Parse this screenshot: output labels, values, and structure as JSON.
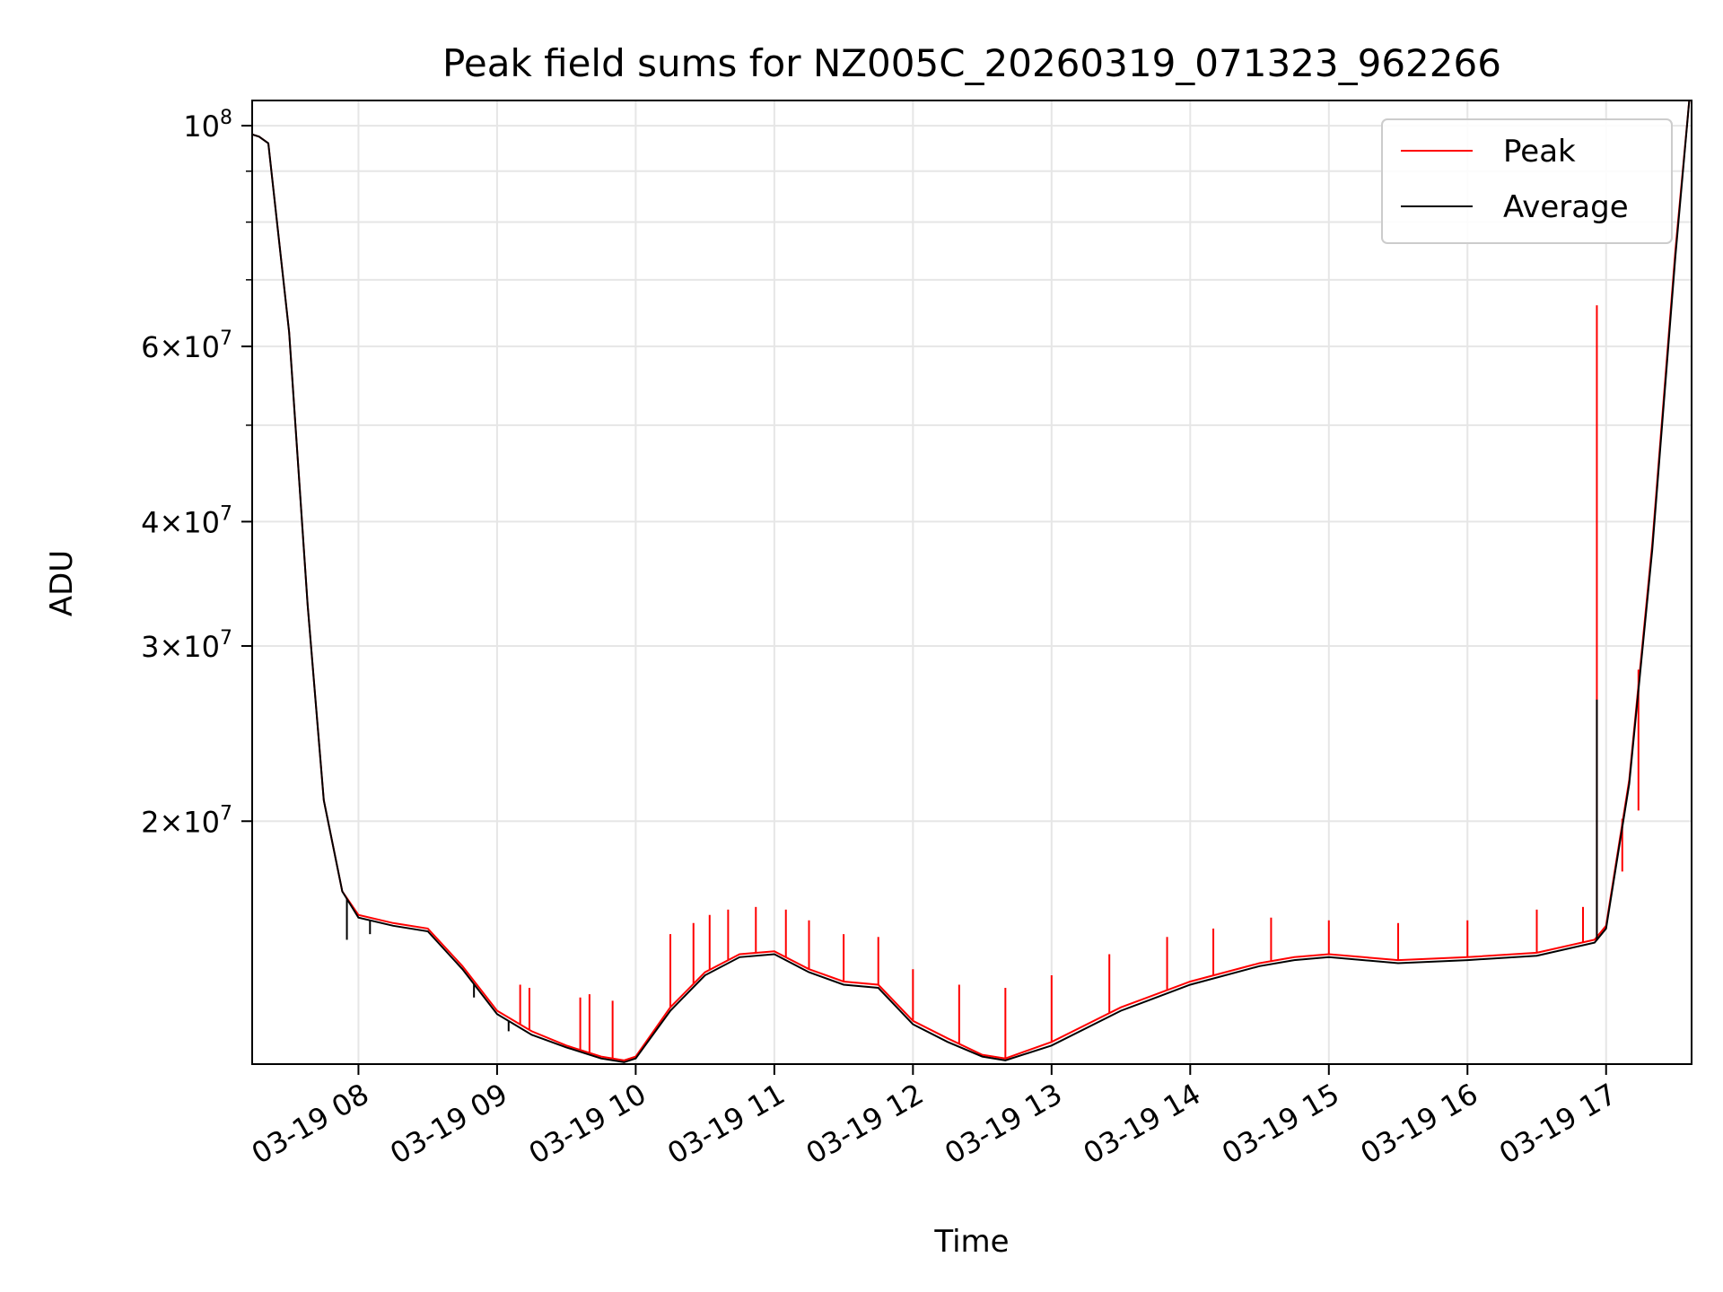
{
  "chart_data": {
    "type": "line",
    "title": "Peak field sums for NZ005C_20260319_071323_962266",
    "xlabel": "Time",
    "ylabel": "ADU",
    "yscale": "log",
    "ylim": [
      11400000,
      106000000
    ],
    "xlim": [
      "2026-03-19 07:14:00",
      "2026-03-19 17:37:00"
    ],
    "grid": true,
    "legend_position": "top-right",
    "x_tick_labels": [
      "03-19 08",
      "03-19 09",
      "03-19 10",
      "03-19 11",
      "03-19 12",
      "03-19 13",
      "03-19 14",
      "03-19 15",
      "03-19 16",
      "03-19 17"
    ],
    "x_ticks": [
      "2026-03-19 08:00",
      "2026-03-19 09:00",
      "2026-03-19 10:00",
      "2026-03-19 11:00",
      "2026-03-19 12:00",
      "2026-03-19 13:00",
      "2026-03-19 14:00",
      "2026-03-19 15:00",
      "2026-03-19 16:00",
      "2026-03-19 17:00"
    ],
    "y_ticks": [
      {
        "value": 20000000,
        "mantissa": "2",
        "exponent": "7"
      },
      {
        "value": 30000000,
        "mantissa": "3",
        "exponent": "7"
      },
      {
        "value": 40000000,
        "mantissa": "4",
        "exponent": "7"
      },
      {
        "value": 60000000,
        "mantissa": "6",
        "exponent": "7"
      },
      {
        "value": 100000000,
        "mantissa": "",
        "exponent": "8"
      }
    ],
    "y_minor_ticks": [
      50000000,
      70000000,
      80000000,
      90000000
    ],
    "series": [
      {
        "name": "Peak",
        "color": "#ff0000",
        "x": [
          "2026-03-19 07:14",
          "2026-03-19 07:17",
          "2026-03-19 07:21",
          "2026-03-19 07:30",
          "2026-03-19 07:38",
          "2026-03-19 07:45",
          "2026-03-19 07:53",
          "2026-03-19 08:00",
          "2026-03-19 08:15",
          "2026-03-19 08:30",
          "2026-03-19 08:45",
          "2026-03-19 09:00",
          "2026-03-19 09:15",
          "2026-03-19 09:30",
          "2026-03-19 09:45",
          "2026-03-19 09:55",
          "2026-03-19 10:00",
          "2026-03-19 10:15",
          "2026-03-19 10:30",
          "2026-03-19 10:45",
          "2026-03-19 11:00",
          "2026-03-19 11:15",
          "2026-03-19 11:30",
          "2026-03-19 11:45",
          "2026-03-19 12:00",
          "2026-03-19 12:15",
          "2026-03-19 12:30",
          "2026-03-19 12:40",
          "2026-03-19 13:00",
          "2026-03-19 13:30",
          "2026-03-19 14:00",
          "2026-03-19 14:30",
          "2026-03-19 14:45",
          "2026-03-19 15:00",
          "2026-03-19 15:30",
          "2026-03-19 16:00",
          "2026-03-19 16:30",
          "2026-03-19 16:55",
          "2026-03-19 17:00",
          "2026-03-19 17:10",
          "2026-03-19 17:20",
          "2026-03-19 17:30",
          "2026-03-19 17:36"
        ],
        "y": [
          98000000,
          97500000,
          96000000,
          62000000,
          33000000,
          21000000,
          17000000,
          16100000,
          15800000,
          15600000,
          14300000,
          12900000,
          12300000,
          11900000,
          11600000,
          11500000,
          11600000,
          13000000,
          14100000,
          14700000,
          14800000,
          14200000,
          13800000,
          13700000,
          12600000,
          12100000,
          11650000,
          11550000,
          12000000,
          13000000,
          13800000,
          14400000,
          14600000,
          14700000,
          14500000,
          14600000,
          14750000,
          15200000,
          15700000,
          22000000,
          38000000,
          75000000,
          106000000
        ],
        "spikes": [
          {
            "x": "2026-03-19 09:10",
            "y": 13700000
          },
          {
            "x": "2026-03-19 09:14",
            "y": 13600000
          },
          {
            "x": "2026-03-19 09:36",
            "y": 13300000
          },
          {
            "x": "2026-03-19 09:40",
            "y": 13400000
          },
          {
            "x": "2026-03-19 09:50",
            "y": 13200000
          },
          {
            "x": "2026-03-19 10:15",
            "y": 15400000
          },
          {
            "x": "2026-03-19 10:25",
            "y": 15800000
          },
          {
            "x": "2026-03-19 10:32",
            "y": 16100000
          },
          {
            "x": "2026-03-19 10:40",
            "y": 16300000
          },
          {
            "x": "2026-03-19 10:52",
            "y": 16400000
          },
          {
            "x": "2026-03-19 11:05",
            "y": 16300000
          },
          {
            "x": "2026-03-19 11:15",
            "y": 15900000
          },
          {
            "x": "2026-03-19 11:30",
            "y": 15400000
          },
          {
            "x": "2026-03-19 11:45",
            "y": 15300000
          },
          {
            "x": "2026-03-19 12:00",
            "y": 14200000
          },
          {
            "x": "2026-03-19 12:20",
            "y": 13700000
          },
          {
            "x": "2026-03-19 12:40",
            "y": 13600000
          },
          {
            "x": "2026-03-19 13:00",
            "y": 14000000
          },
          {
            "x": "2026-03-19 13:25",
            "y": 14700000
          },
          {
            "x": "2026-03-19 13:50",
            "y": 15300000
          },
          {
            "x": "2026-03-19 14:10",
            "y": 15600000
          },
          {
            "x": "2026-03-19 14:35",
            "y": 16000000
          },
          {
            "x": "2026-03-19 15:00",
            "y": 15900000
          },
          {
            "x": "2026-03-19 15:30",
            "y": 15800000
          },
          {
            "x": "2026-03-19 16:00",
            "y": 15900000
          },
          {
            "x": "2026-03-19 16:30",
            "y": 16300000
          },
          {
            "x": "2026-03-19 16:50",
            "y": 16400000
          },
          {
            "x": "2026-03-19 16:56",
            "y": 66000000
          },
          {
            "x": "2026-03-19 17:07",
            "y": 17800000
          },
          {
            "x": "2026-03-19 17:14",
            "y": 20500000
          }
        ]
      },
      {
        "name": "Average",
        "color": "#000000",
        "x": [
          "2026-03-19 07:14",
          "2026-03-19 07:17",
          "2026-03-19 07:21",
          "2026-03-19 07:30",
          "2026-03-19 07:38",
          "2026-03-19 07:45",
          "2026-03-19 07:53",
          "2026-03-19 08:00",
          "2026-03-19 08:15",
          "2026-03-19 08:30",
          "2026-03-19 08:45",
          "2026-03-19 09:00",
          "2026-03-19 09:15",
          "2026-03-19 09:30",
          "2026-03-19 09:45",
          "2026-03-19 09:55",
          "2026-03-19 10:00",
          "2026-03-19 10:15",
          "2026-03-19 10:30",
          "2026-03-19 10:45",
          "2026-03-19 11:00",
          "2026-03-19 11:15",
          "2026-03-19 11:30",
          "2026-03-19 11:45",
          "2026-03-19 12:00",
          "2026-03-19 12:15",
          "2026-03-19 12:30",
          "2026-03-19 12:40",
          "2026-03-19 13:00",
          "2026-03-19 13:30",
          "2026-03-19 14:00",
          "2026-03-19 14:30",
          "2026-03-19 14:45",
          "2026-03-19 15:00",
          "2026-03-19 15:30",
          "2026-03-19 16:00",
          "2026-03-19 16:30",
          "2026-03-19 16:55",
          "2026-03-19 17:00",
          "2026-03-19 17:10",
          "2026-03-19 17:20",
          "2026-03-19 17:30",
          "2026-03-19 17:36"
        ],
        "y": [
          98000000,
          97500000,
          96000000,
          62000000,
          33000000,
          21000000,
          17000000,
          16000000,
          15700000,
          15500000,
          14200000,
          12800000,
          12200000,
          11850000,
          11550000,
          11450000,
          11550000,
          12900000,
          14000000,
          14600000,
          14700000,
          14100000,
          13700000,
          13600000,
          12500000,
          12000000,
          11600000,
          11500000,
          11900000,
          12900000,
          13700000,
          14300000,
          14500000,
          14600000,
          14400000,
          14500000,
          14650000,
          15100000,
          15600000,
          21800000,
          37500000,
          74000000,
          106000000
        ],
        "spikes": [
          {
            "x": "2026-03-19 07:55",
            "y": 15200000
          },
          {
            "x": "2026-03-19 08:05",
            "y": 15400000
          },
          {
            "x": "2026-03-19 08:50",
            "y": 13300000
          },
          {
            "x": "2026-03-19 09:05",
            "y": 12300000
          },
          {
            "x": "2026-03-19 16:56",
            "y": 26500000
          }
        ]
      }
    ]
  }
}
